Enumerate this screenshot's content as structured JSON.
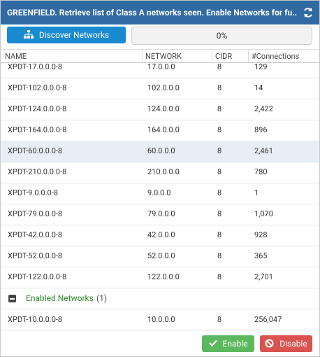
{
  "header": {
    "title": "GREENFIELD. Retrieve list of Class A networks seen. Enable Networks for fu…"
  },
  "toolbar": {
    "discover_button": "Discover Networks",
    "progress": "0%"
  },
  "table": {
    "columns": [
      "NAME",
      "NETWORK",
      "CIDR",
      "#Connections"
    ],
    "rows": [
      [
        "XPDT-17.0.0.0-8",
        "17.0.0.0",
        "8",
        "129"
      ],
      [
        "XPDT-102.0.0.0-8",
        "102.0.0.0",
        "8",
        "14"
      ],
      [
        "XPDT-124.0.0.0-8",
        "124.0.0.0",
        "8",
        "2,422"
      ],
      [
        "XPDT-164.0.0.0-8",
        "164.0.0.0",
        "8",
        "896"
      ],
      [
        "XPDT-60.0.0.0-8",
        "60.0.0.0",
        "8",
        "2,461"
      ],
      [
        "XPDT-210.0.0.0-8",
        "210.0.0.0",
        "8",
        "780"
      ],
      [
        "XPDT-9.0.0.0-8",
        "9.0.0.0",
        "8",
        "1"
      ],
      [
        "XPDT-79.0.0.0-8",
        "79.0.0.0",
        "8",
        "1,070"
      ],
      [
        "XPDT-42.0.0.0-8",
        "42.0.0.0",
        "8",
        "928"
      ],
      [
        "XPDT-52.0.0.0-8",
        "52.0.0.0",
        "8",
        "365"
      ],
      [
        "XPDT-122.0.0.0-8",
        "122.0.0.0",
        "8",
        "2,701"
      ]
    ],
    "group": {
      "label": "Enabled Networks",
      "count": "(1)"
    },
    "enabled_rows": [
      [
        "XPDT-10.0.0.0-8",
        "10.0.0.0",
        "8",
        "256,047"
      ]
    ]
  },
  "footer": {
    "enable_button": "Enable",
    "disable_button": "Disable"
  }
}
